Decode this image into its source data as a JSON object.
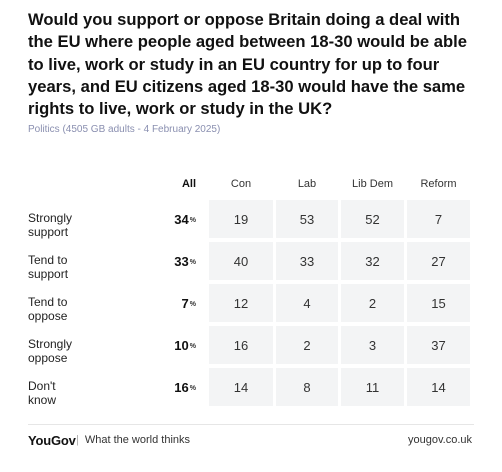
{
  "title": "Would you support or oppose Britain doing a deal with the EU where people aged between 18-30 would be able to live, work or study in an EU country for up to four years, and EU citizens aged 18-30 would have the same rights to live, work or study in the UK?",
  "subtitle": "Politics (4505 GB adults - 4 February 2025)",
  "footer": {
    "brand": "YouGov",
    "tagline": "What the world thinks",
    "url": "yougov.co.uk"
  },
  "chart_data": {
    "type": "table",
    "columns": [
      "All",
      "Con",
      "Lab",
      "Lib Dem",
      "Reform"
    ],
    "rows": [
      {
        "label": "Strongly support",
        "all": "34",
        "values": [
          "19",
          "53",
          "52",
          "7"
        ]
      },
      {
        "label": "Tend to support",
        "all": "33",
        "values": [
          "40",
          "33",
          "32",
          "27"
        ]
      },
      {
        "label": "Tend to oppose",
        "all": "7",
        "values": [
          "12",
          "4",
          "2",
          "15"
        ]
      },
      {
        "label": "Strongly oppose",
        "all": "10",
        "values": [
          "16",
          "2",
          "3",
          "37"
        ]
      },
      {
        "label": "Don't know",
        "all": "16",
        "values": [
          "14",
          "8",
          "11",
          "14"
        ]
      }
    ],
    "pct_symbol": "%"
  }
}
